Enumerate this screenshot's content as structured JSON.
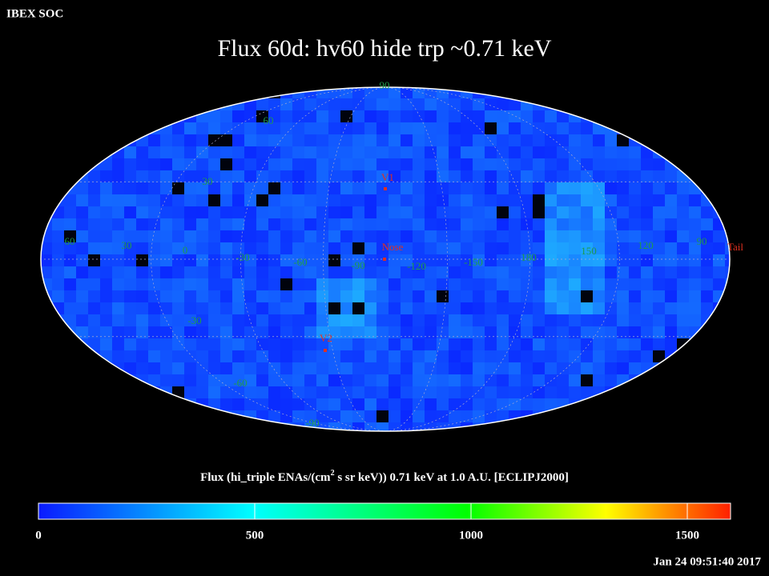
{
  "header": {
    "source": "IBEX SOC",
    "title": "Flux   60d: hv60 hide trp ~0.71 keV",
    "timestamp": "Jan 24 09:51:40 2017"
  },
  "map": {
    "lat_labels": [
      90,
      60,
      30,
      -30,
      -60,
      -90
    ],
    "lon_labels": [
      60,
      30,
      0,
      -30,
      -60,
      -90,
      -120,
      -150,
      180,
      150,
      120,
      90
    ],
    "markers": [
      "V1",
      "Nose",
      "V2",
      "Tail"
    ]
  },
  "colorbar": {
    "title_before": "Flux (hi_triple ENAs/(cm",
    "title_sup": "2",
    "title_after": " s sr keV))  0.71 keV at 1.0 A.U. [ECLIPJ2000]",
    "lim": [
      0,
      1600
    ],
    "ticks": [
      0,
      500,
      1000,
      1500
    ]
  }
}
